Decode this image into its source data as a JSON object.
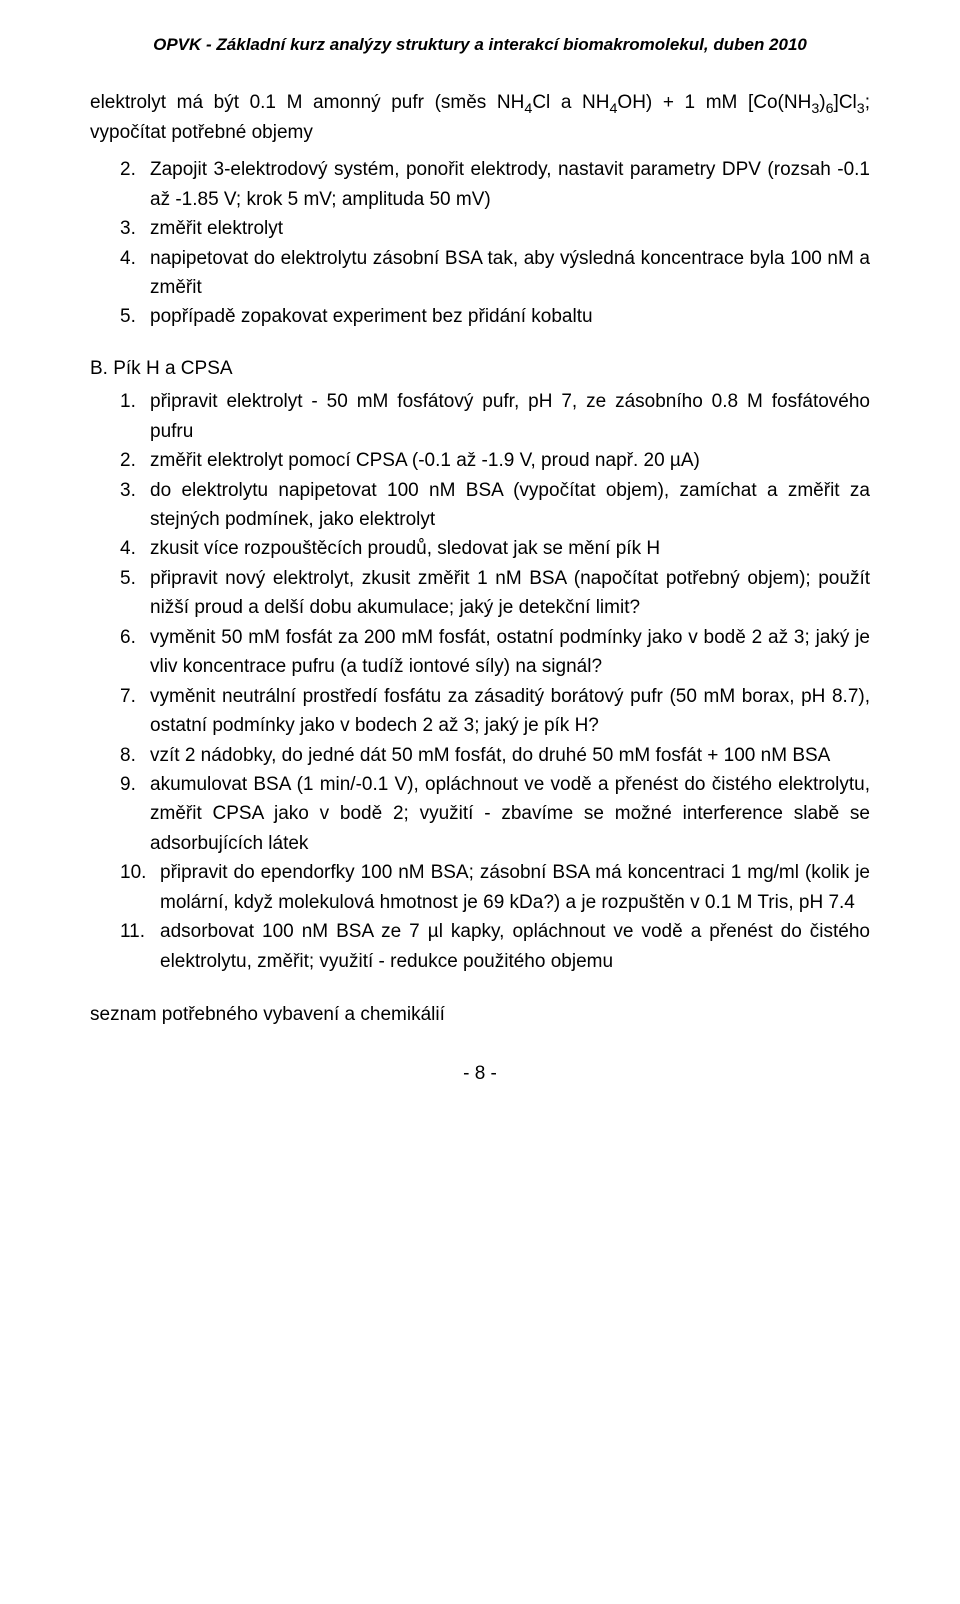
{
  "header": "OPVK - Základní kurz analýzy struktury a interakcí biomakromolekul, duben 2010",
  "intro_line": "elektrolyt má být 0.1 M amonný pufr (směs NH₄Cl a NH₄OH) + 1 mM [Co(NH₃)₆]Cl₃; vypočítat potřebné objemy",
  "listA": [
    {
      "n": "2.",
      "text": "Zapojit 3-elektrodový systém, ponořit elektrody, nastavit parametry DPV (rozsah -0.1 až -1.85 V; krok 5 mV; amplituda 50 mV)"
    },
    {
      "n": "3.",
      "text": "změřit elektrolyt"
    },
    {
      "n": "4.",
      "text": "napipetovat do elektrolytu zásobní BSA tak, aby výsledná koncentrace byla 100 nM a změřit"
    },
    {
      "n": "5.",
      "text": "popřípadě zopakovat experiment bez přidání kobaltu"
    }
  ],
  "sectionB_title": "B.    Pík H a CPSA",
  "listB": [
    {
      "n": "1.",
      "text": "připravit elektrolyt - 50 mM fosfátový pufr, pH 7, ze zásobního 0.8 M fosfátového pufru"
    },
    {
      "n": "2.",
      "text": "změřit elektrolyt pomocí CPSA (-0.1 až -1.9 V, proud např. 20 µA)"
    },
    {
      "n": "3.",
      "text": "do elektrolytu napipetovat 100 nM BSA (vypočítat objem), zamíchat a změřit za stejných podmínek, jako elektrolyt"
    },
    {
      "n": "4.",
      "text": "zkusit více rozpouštěcích proudů, sledovat jak se mění pík H"
    },
    {
      "n": "5.",
      "text": "připravit nový elektrolyt, zkusit změřit 1 nM BSA (napočítat potřebný objem); použít nižší proud a delší dobu akumulace; jaký je detekční limit?"
    },
    {
      "n": "6.",
      "text": "vyměnit 50 mM fosfát za 200 mM fosfát, ostatní podmínky jako v bodě 2 až 3; jaký je vliv koncentrace pufru (a tudíž iontové síly) na signál?"
    },
    {
      "n": "7.",
      "text": "vyměnit neutrální prostředí fosfátu za zásaditý borátový pufr (50 mM borax, pH 8.7), ostatní podmínky jako v bodech 2 až 3; jaký je pík H?"
    },
    {
      "n": "8.",
      "text": "vzít 2 nádobky, do jedné dát 50 mM fosfát, do druhé 50 mM fosfát + 100 nM BSA"
    },
    {
      "n": "9.",
      "text": "akumulovat BSA (1 min/-0.1 V), opláchnout ve vodě a přenést do čistého elektrolytu, změřit CPSA jako v bodě 2; využití - zbavíme se možné interference slabě se adsorbujících látek"
    },
    {
      "n": "10.",
      "text": "připravit do ependorfky 100 nM BSA; zásobní BSA má koncentraci 1 mg/ml (kolik je molární, když molekulová hmotnost je 69 kDa?) a je rozpuštěn v 0.1 M Tris, pH 7.4"
    },
    {
      "n": "11.",
      "text": "adsorbovat 100 nM BSA ze 7 µl kapky, opláchnout ve vodě a přenést do čistého elektrolytu, změřit; využití - redukce použitého objemu"
    }
  ],
  "footer_line": "seznam potřebného vybavení a chemikálií",
  "page_number": "- 8 -"
}
